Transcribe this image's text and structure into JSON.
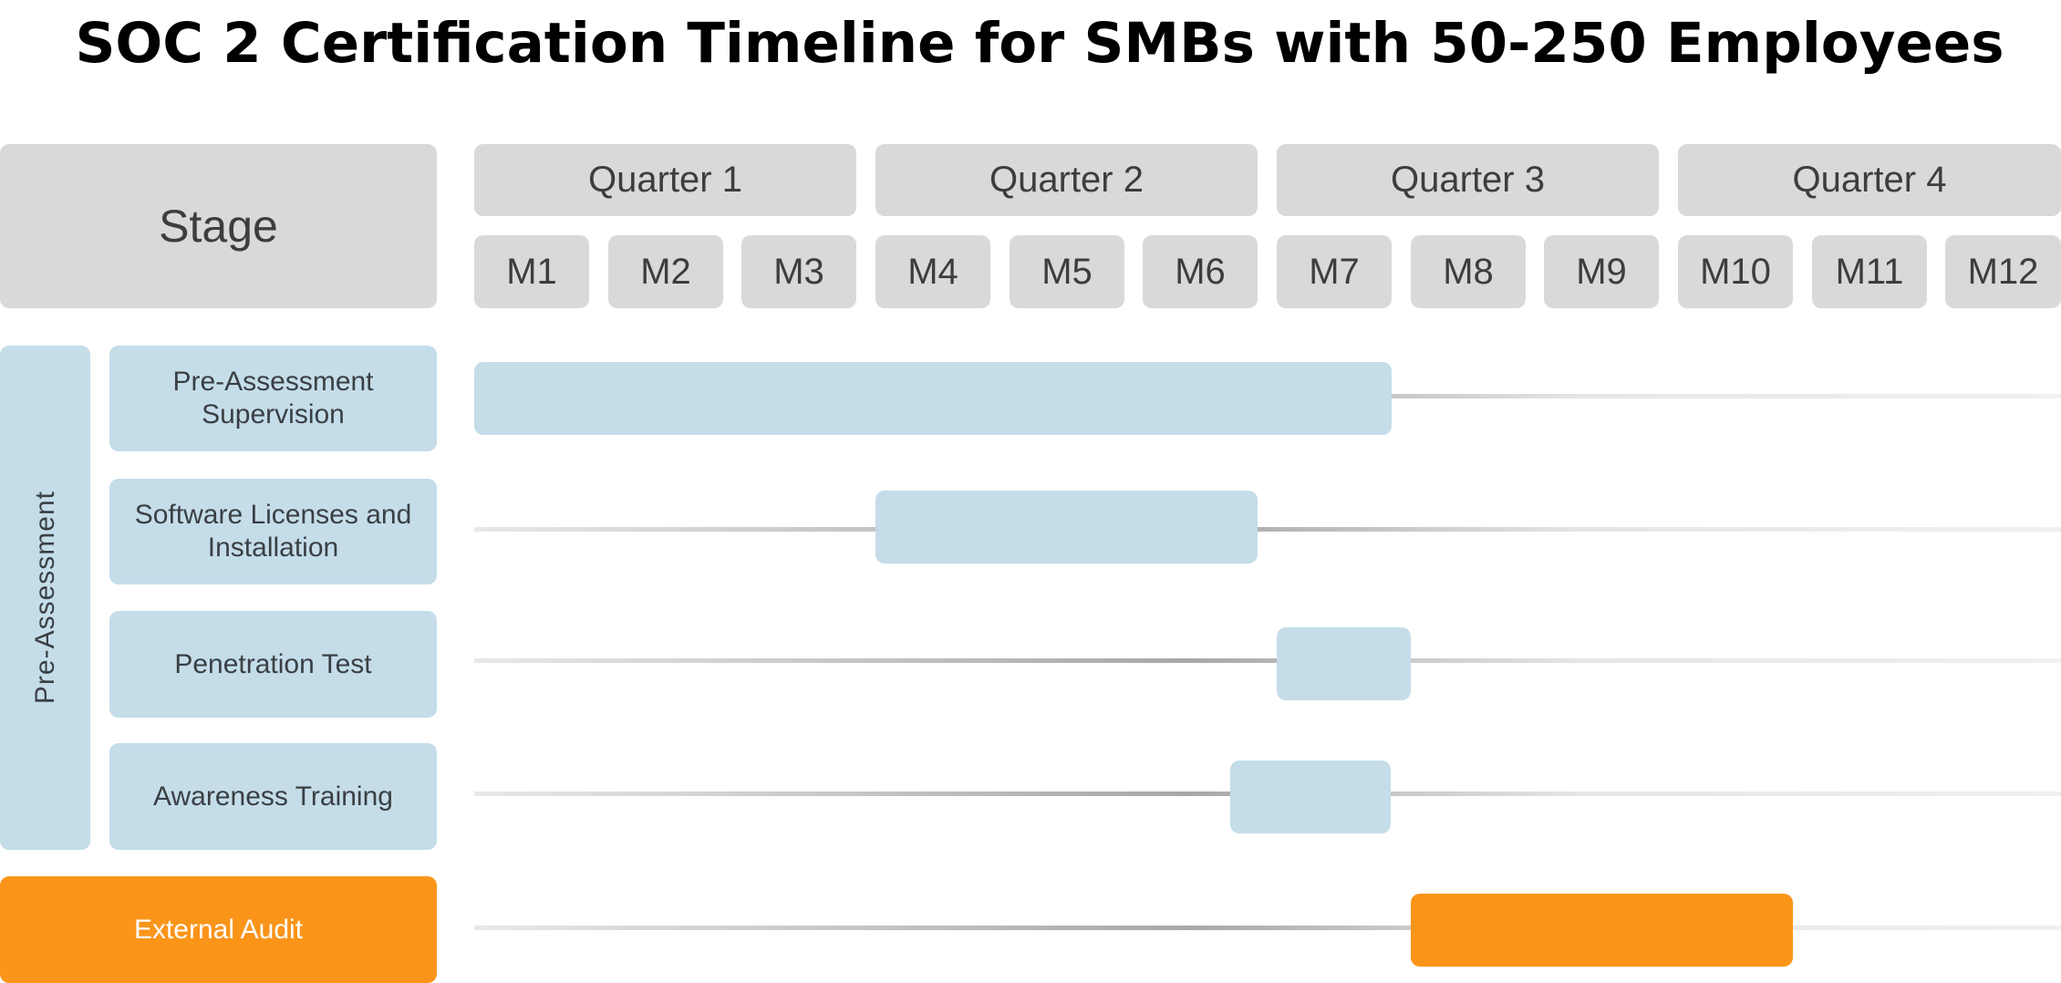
{
  "title": "SOC 2 Certification Timeline for SMBs with 50-250 Employees",
  "header": {
    "stage_label": "Stage",
    "quarters": [
      "Quarter 1",
      "Quarter 2",
      "Quarter 3",
      "Quarter 4"
    ],
    "months": [
      "M1",
      "M2",
      "M3",
      "M4",
      "M5",
      "M6",
      "M7",
      "M8",
      "M9",
      "M10",
      "M11",
      "M12"
    ]
  },
  "groups": [
    {
      "label": "Pre-Assessment",
      "color": "#c4dde9",
      "tasks": [
        {
          "label": "Pre-Assessment Supervision",
          "start_month": 1,
          "end_month": 7
        },
        {
          "label": "Software Licenses and Installation",
          "start_month": 4,
          "end_month": 6
        },
        {
          "label": "Penetration Test",
          "start_month": 7,
          "end_month": 7
        },
        {
          "label": "Awareness Training",
          "start_month": 6.65,
          "end_month": 6.85
        }
      ]
    }
  ],
  "standalone": [
    {
      "label": "External Audit",
      "color": "#fa951a",
      "start_month": 8,
      "end_month": 10
    }
  ],
  "colors": {
    "header_gray": "#d9d9d9",
    "pre_assessment_blue": "#c4dde9",
    "external_audit_orange": "#fa951a"
  }
}
